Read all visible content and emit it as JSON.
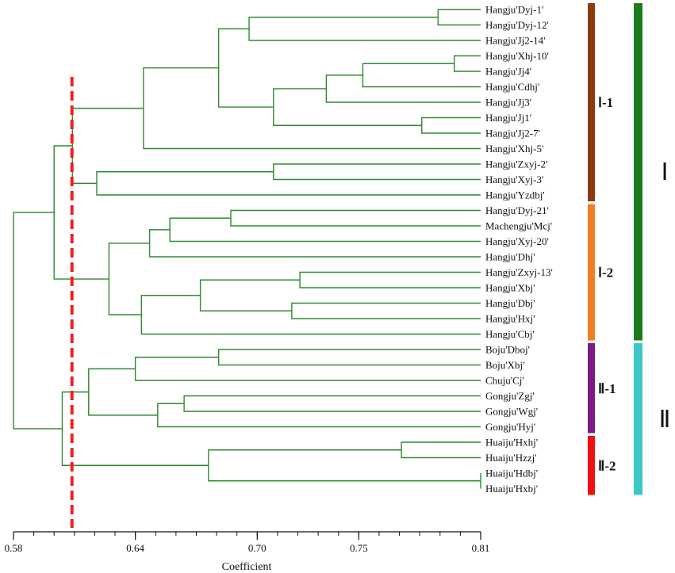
{
  "chart_data": {
    "type": "dendrogram",
    "xlabel": "Coefficient",
    "xlim": [
      0.58,
      0.81
    ],
    "ticks": [
      "0.58",
      "0.64",
      "0.70",
      "0.75",
      "0.81"
    ],
    "tick_values": [
      0.58,
      0.64,
      0.7,
      0.75,
      0.81
    ],
    "cut_threshold": 0.608,
    "line_color": "#2e8b2e",
    "cut_color": "#ee2222",
    "leaves": [
      "Hangju'Dyj-1'",
      "Hangju'Dyj-12'",
      "Hangju'Jj2-14'",
      "Hangju'Xhj-10'",
      "Hangju'Jj4'",
      "Hangju'Cdhj'",
      "Hangju'Jj3'",
      "Hangju'Jj1'",
      "Hangju'Jj2-7'",
      "Hangju'Xhj-5'",
      "Hangju'Zxyj-2'",
      "Hangju'Xyj-3'",
      "Hangju'Yzdbj'",
      "Hangju'Dyj-21'",
      "Machengju'Mcj'",
      "Hangju'Xyj-20'",
      "Hangju'Dhj'",
      "Hangju'Zxyj-13'",
      "Hangju'Xbj'",
      "Hangju'Dbj'",
      "Hangju'Hxj'",
      "Hangju'Cbj'",
      "Boju'Dboj'",
      "Boju'Xbj'",
      "Chuju'Cj'",
      "Gongju'Zgj'",
      "Gongju'Wgj'",
      "Gongju'Hyj'",
      "Huaiju'Hxhj'",
      "Huaiju'Hzzj'",
      "Huaiju'Hdbj'",
      "Huaiju'Hxbj'"
    ],
    "merges": [
      {
        "a": "L0",
        "b": "L1",
        "h": 0.789
      },
      {
        "a": "M0",
        "b": "L2",
        "h": 0.696
      },
      {
        "a": "L3",
        "b": "L4",
        "h": 0.797
      },
      {
        "a": "M2",
        "b": "L5",
        "h": 0.752
      },
      {
        "a": "M3",
        "b": "L6",
        "h": 0.734
      },
      {
        "a": "L7",
        "b": "L8",
        "h": 0.781
      },
      {
        "a": "M4",
        "b": "M5",
        "h": 0.708
      },
      {
        "a": "M1",
        "b": "M6",
        "h": 0.681
      },
      {
        "a": "M7",
        "b": "L9",
        "h": 0.644
      },
      {
        "a": "L10",
        "b": "L11",
        "h": 0.708
      },
      {
        "a": "M9",
        "b": "L12",
        "h": 0.621
      },
      {
        "a": "M8",
        "b": "M10",
        "h": 0.609
      },
      {
        "a": "L13",
        "b": "L14",
        "h": 0.687
      },
      {
        "a": "M12",
        "b": "L15",
        "h": 0.657
      },
      {
        "a": "M13",
        "b": "L16",
        "h": 0.647
      },
      {
        "a": "L17",
        "b": "L18",
        "h": 0.721
      },
      {
        "a": "L19",
        "b": "L20",
        "h": 0.717
      },
      {
        "a": "M15",
        "b": "M16",
        "h": 0.672
      },
      {
        "a": "M17",
        "b": "L21",
        "h": 0.643
      },
      {
        "a": "M14",
        "b": "M18",
        "h": 0.627
      },
      {
        "a": "M11",
        "b": "M19",
        "h": 0.6
      },
      {
        "a": "L22",
        "b": "L23",
        "h": 0.681
      },
      {
        "a": "M21",
        "b": "L24",
        "h": 0.64
      },
      {
        "a": "L25",
        "b": "L26",
        "h": 0.664
      },
      {
        "a": "M23",
        "b": "L27",
        "h": 0.651
      },
      {
        "a": "M22",
        "b": "M24",
        "h": 0.617
      },
      {
        "a": "L28",
        "b": "L29",
        "h": 0.771
      },
      {
        "a": "L30",
        "b": "L31",
        "h": 0.81
      },
      {
        "a": "M26",
        "b": "M27",
        "h": 0.676
      },
      {
        "a": "M25",
        "b": "M28",
        "h": 0.604
      },
      {
        "a": "M20",
        "b": "M29",
        "h": 0.58
      }
    ],
    "subgroups": [
      {
        "label": "Ⅰ-1",
        "from": 0,
        "to": 12,
        "color": "#8b3a0e"
      },
      {
        "label": "Ⅰ-2",
        "from": 13,
        "to": 21,
        "color": "#f07d22"
      },
      {
        "label": "Ⅱ-1",
        "from": 22,
        "to": 27,
        "color": "#7b1b86"
      },
      {
        "label": "Ⅱ-2",
        "from": 28,
        "to": 31,
        "color": "#ee1111"
      }
    ],
    "clusters": [
      {
        "label": "Ⅰ",
        "from": 0,
        "to": 21,
        "color": "#1a7d1a"
      },
      {
        "label": "Ⅱ",
        "from": 22,
        "to": 31,
        "color": "#3dc7c9"
      }
    ]
  }
}
